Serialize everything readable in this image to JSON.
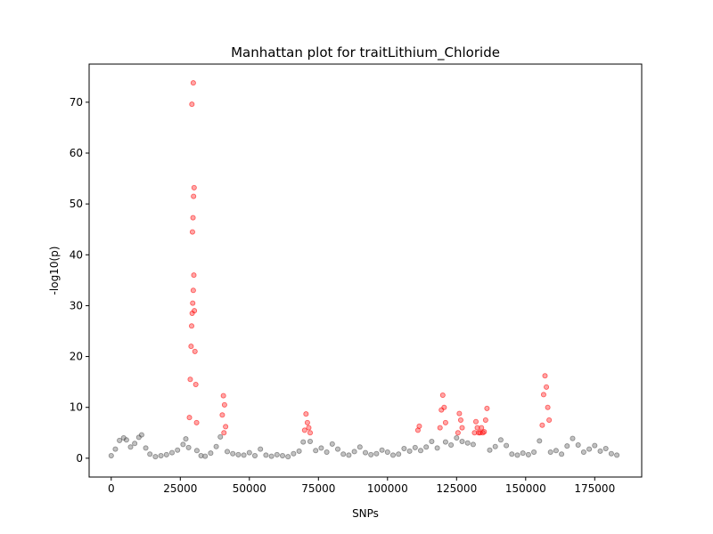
{
  "chart_data": {
    "type": "scatter",
    "title": "Manhattan plot for traitLithium_Chloride",
    "xlabel": "SNPs",
    "ylabel": "-log10(p)",
    "xlim": [
      -8000,
      192000
    ],
    "ylim": [
      -3.7,
      77.5
    ],
    "xticks": [
      0,
      25000,
      50000,
      75000,
      100000,
      125000,
      150000,
      175000
    ],
    "xtick_labels": [
      "0",
      "25000",
      "50000",
      "75000",
      "100000",
      "125000",
      "150000",
      "175000"
    ],
    "yticks": [
      0,
      10,
      20,
      30,
      40,
      50,
      60,
      70
    ],
    "ytick_labels": [
      "0",
      "10",
      "20",
      "30",
      "40",
      "50",
      "60",
      "70"
    ],
    "grid": false,
    "legend": "none",
    "colors": {
      "background_snps": "#4d4d4d",
      "significant_snps": "#ff0000"
    },
    "series": [
      {
        "role": "background",
        "color": "#4d4d4d",
        "x": [
          0,
          1500,
          3000,
          4500,
          5500,
          7000,
          8500,
          10000,
          11000,
          12500,
          14000,
          16000,
          18000,
          20000,
          22000,
          24000,
          26000,
          27000,
          28000,
          31000,
          32500,
          34000,
          36000,
          38000,
          39500,
          42000,
          44000,
          46000,
          48000,
          50000,
          52000,
          54000,
          56000,
          58000,
          60000,
          62000,
          64000,
          66000,
          68000,
          69500,
          72000,
          74000,
          76000,
          78000,
          80000,
          82000,
          84000,
          86000,
          88000,
          90000,
          92000,
          94000,
          96000,
          98000,
          100000,
          102000,
          104000,
          106000,
          108000,
          110000,
          112000,
          114000,
          116000,
          118000,
          121000,
          123000,
          125000,
          127000,
          129000,
          131000,
          137000,
          139000,
          141000,
          143000,
          145000,
          147000,
          149000,
          151000,
          153000,
          155000,
          159000,
          161000,
          163000,
          165000,
          167000,
          169000,
          171000,
          173000,
          175000,
          177000,
          179000,
          181000,
          183000
        ],
        "y": [
          0.5,
          1.8,
          3.5,
          4.0,
          3.6,
          2.2,
          2.9,
          4.1,
          4.6,
          2.0,
          0.8,
          0.3,
          0.5,
          0.7,
          1.1,
          1.6,
          2.7,
          3.8,
          2.1,
          1.5,
          0.5,
          0.4,
          1.0,
          2.3,
          4.2,
          1.3,
          0.9,
          0.7,
          0.6,
          1.1,
          0.5,
          1.8,
          0.6,
          0.4,
          0.7,
          0.5,
          0.3,
          0.9,
          1.4,
          3.2,
          3.3,
          1.5,
          2.0,
          1.2,
          2.8,
          1.8,
          0.8,
          0.6,
          1.3,
          2.2,
          1.1,
          0.7,
          0.9,
          1.6,
          1.2,
          0.6,
          0.8,
          1.9,
          1.4,
          2.1,
          1.5,
          2.2,
          3.3,
          2.0,
          3.2,
          2.6,
          4.0,
          3.3,
          3.0,
          2.7,
          1.6,
          2.3,
          3.6,
          2.5,
          0.8,
          0.6,
          1.0,
          0.7,
          1.2,
          3.4,
          1.2,
          1.5,
          0.8,
          2.4,
          3.9,
          2.6,
          1.2,
          1.8,
          2.5,
          1.4,
          1.9,
          0.9,
          0.6
        ]
      },
      {
        "role": "significant",
        "color": "#ff0000",
        "x": [
          28300,
          28600,
          28900,
          29100,
          29300,
          29500,
          29700,
          29900,
          30100,
          30300,
          30600,
          30900,
          29400,
          29600,
          29800,
          30000,
          29200,
          29700,
          40200,
          40600,
          41000,
          41400,
          40800,
          70000,
          70500,
          71000,
          71500,
          72000,
          111000,
          111500,
          119000,
          119500,
          120000,
          120500,
          121000,
          125500,
          126000,
          126500,
          127000,
          131500,
          132000,
          132500,
          133000,
          133500,
          134000,
          134500,
          135000,
          135500,
          136000,
          156000,
          156500,
          157000,
          157500,
          158000,
          158500
        ],
        "y": [
          8.0,
          15.5,
          22.0,
          26.0,
          28.5,
          30.5,
          33.0,
          36.0,
          29.0,
          21.0,
          14.5,
          7.0,
          44.5,
          47.3,
          51.5,
          53.2,
          69.6,
          73.8,
          8.5,
          12.3,
          10.5,
          6.2,
          5.0,
          5.5,
          8.7,
          7.0,
          6.0,
          5.0,
          5.5,
          6.3,
          6.0,
          9.5,
          12.4,
          10.0,
          7.0,
          5.0,
          8.8,
          7.5,
          6.0,
          5.0,
          7.2,
          6.0,
          5.0,
          5.0,
          6.0,
          5.0,
          5.2,
          7.5,
          9.8,
          6.5,
          12.5,
          16.2,
          14.0,
          10.0,
          7.5
        ]
      }
    ]
  }
}
